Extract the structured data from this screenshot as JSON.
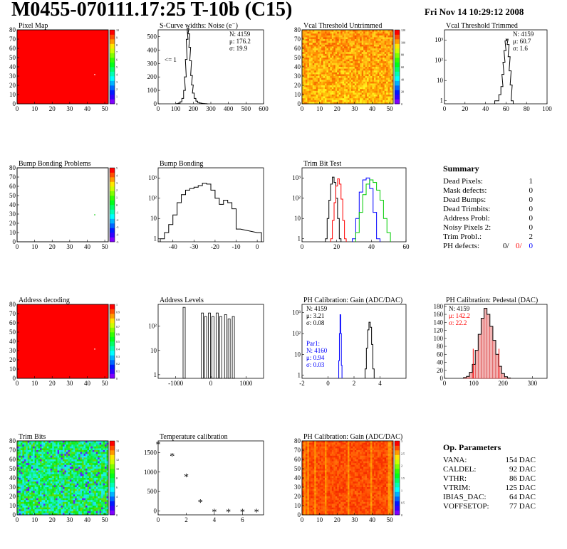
{
  "header": {
    "title": "M0455-070111.17:25 T-10b (C15)",
    "date": "Fri Nov 14 10:29:12 2008"
  },
  "panels": [
    {
      "id": "pixel_map",
      "title": "Pixel Map",
      "type": "heatmap",
      "xticks": [
        "0",
        "10",
        "20",
        "30",
        "40",
        "50"
      ],
      "yticks": [
        "0",
        "10",
        "20",
        "30",
        "40",
        "50",
        "60",
        "70",
        "80"
      ],
      "palette": "solid-red",
      "palette_labels": [
        "0",
        "1",
        "2",
        "3",
        "4",
        "5",
        "6",
        "7",
        "8",
        "9",
        "10"
      ]
    },
    {
      "id": "scurve",
      "title": "S-Curve widths: Noise (e⁻)",
      "type": "histogram",
      "xticks": [
        "0",
        "100",
        "200",
        "300",
        "400",
        "500",
        "600"
      ],
      "yticks": [
        "0",
        "100",
        "200",
        "300",
        "400",
        "500"
      ],
      "stats": [
        {
          "t": "N: 4159",
          "c": "#000"
        },
        {
          "t": "μ: 176.2",
          "c": "#000"
        },
        {
          "t": "σ: 19.9",
          "c": "#000"
        }
      ],
      "annotation": "<= 1"
    },
    {
      "id": "vcal_untrimmed",
      "title": "Vcal Threshold Untrimmed",
      "type": "heatmap",
      "xticks": [
        "0",
        "10",
        "20",
        "30",
        "40",
        "50"
      ],
      "yticks": [
        "0",
        "10",
        "20",
        "30",
        "40",
        "50",
        "60",
        "70",
        "80"
      ],
      "palette": "untrimmed",
      "palette_labels": [
        "0",
        "20",
        "40",
        "60",
        "80",
        "100",
        "120"
      ]
    },
    {
      "id": "vcal_trimmed",
      "title": "Vcal Threshold Trimmed",
      "type": "histogram",
      "xticks": [
        "0",
        "20",
        "40",
        "60",
        "80",
        "100"
      ],
      "yticks": [
        "1",
        "10",
        "10²",
        "10³"
      ],
      "stats": [
        {
          "t": "N: 4159",
          "c": "#000"
        },
        {
          "t": "μ: 60.7",
          "c": "#000"
        },
        {
          "t": "σ:  1.6",
          "c": "#000"
        }
      ]
    },
    {
      "id": "bump_problems",
      "title": "Bump Bonding Problems",
      "type": "heatmap",
      "xticks": [
        "0",
        "10",
        "20",
        "30",
        "40",
        "50"
      ],
      "yticks": [
        "0",
        "10",
        "20",
        "30",
        "40",
        "50",
        "60",
        "70",
        "80"
      ],
      "palette": "empty",
      "palette_labels": [
        "-5",
        "-4",
        "-3",
        "-2",
        "-1",
        "0",
        "1",
        "2",
        "3",
        "4",
        "5"
      ]
    },
    {
      "id": "bump_bonding",
      "title": "Bump Bonding",
      "type": "histogram",
      "xticks": [
        "-40",
        "-30",
        "-20",
        "-10",
        "0"
      ],
      "yticks": [
        "1",
        "10",
        "10²",
        "10³"
      ]
    },
    {
      "id": "trim_bit",
      "title": "Trim Bit Test",
      "type": "histogram",
      "xticks": [
        "0",
        "20",
        "40",
        "60"
      ],
      "yticks": [
        "1",
        "10",
        "10²",
        "10³"
      ]
    },
    {
      "id": "address_decoding",
      "title": "Address decoding",
      "type": "heatmap",
      "xticks": [
        "0",
        "10",
        "20",
        "30",
        "40",
        "50"
      ],
      "yticks": [
        "0",
        "10",
        "20",
        "30",
        "40",
        "50",
        "60",
        "70",
        "80"
      ],
      "palette": "solid-red",
      "palette_labels": [
        "0",
        "0.1",
        "0.2",
        "0.3",
        "0.4",
        "0.5",
        "0.6",
        "0.7",
        "0.8",
        "0.9",
        "1"
      ]
    },
    {
      "id": "address_levels",
      "title": "Address Levels",
      "type": "histogram",
      "xticks": [
        "-1000",
        "0",
        "1000"
      ],
      "yticks": [
        "1",
        "10",
        "10²"
      ]
    },
    {
      "id": "ph_gain_hist",
      "title": "PH Calibration: Gain (ADC/DAC)",
      "type": "histogram",
      "xticks": [
        "-2",
        "0",
        "2",
        "4"
      ],
      "yticks": [
        "1",
        "10",
        "10²",
        "10³"
      ],
      "stats": [
        {
          "t": "N: 4159",
          "c": "#000"
        },
        {
          "t": "μ: 3.21",
          "c": "#000"
        },
        {
          "t": "σ: 0.08",
          "c": "#000"
        }
      ],
      "stats2": [
        {
          "t": "Par1:",
          "c": "#0000ff"
        },
        {
          "t": "N: 4160",
          "c": "#0000ff"
        },
        {
          "t": "μ: 0.94",
          "c": "#0000ff"
        },
        {
          "t": "σ: 0.03",
          "c": "#0000ff"
        }
      ]
    },
    {
      "id": "ph_pedestal",
      "title": "PH Calibration: Pedestal (DAC)",
      "type": "histogram",
      "xticks": [
        "0",
        "100",
        "200",
        "300"
      ],
      "yticks": [
        "0",
        "20",
        "40",
        "60",
        "80",
        "100",
        "120",
        "140",
        "160",
        "180"
      ],
      "stats": [
        {
          "t": "N: 4159",
          "c": "#000"
        },
        {
          "t": "μ: 142.2",
          "c": "#ff0000"
        },
        {
          "t": "σ: 22.2",
          "c": "#ff0000"
        }
      ]
    },
    {
      "id": "trim_bits",
      "title": "Trim Bits",
      "type": "heatmap",
      "xticks": [
        "0",
        "10",
        "20",
        "30",
        "40",
        "50"
      ],
      "yticks": [
        "0",
        "10",
        "20",
        "30",
        "40",
        "50",
        "60",
        "70",
        "80"
      ],
      "palette": "trimbits",
      "palette_labels": [
        "0",
        "2",
        "4",
        "6",
        "8",
        "10",
        "12",
        "14",
        "16"
      ]
    },
    {
      "id": "temp_cal",
      "title": "Temperature calibration",
      "type": "scatter",
      "xticks": [
        "0",
        "2",
        "4",
        "6"
      ],
      "yticks": [
        "0",
        "500",
        "1000",
        "1500"
      ]
    },
    {
      "id": "ph_gain_map",
      "title": "PH Calibration: Gain (ADC/DAC)",
      "type": "heatmap",
      "xticks": [
        "0",
        "10",
        "20",
        "30",
        "40",
        "50"
      ],
      "yticks": [
        "0",
        "10",
        "20",
        "30",
        "40",
        "50",
        "60",
        "70",
        "80"
      ],
      "palette": "gainmap",
      "palette_labels": [
        "0",
        "0.5",
        "1",
        "1.5",
        "2",
        "2.5",
        "3"
      ]
    }
  ],
  "summary": {
    "title": "Summary",
    "rows": [
      {
        "label": "Dead Pixels:",
        "value": "1"
      },
      {
        "label": "Mask defects:",
        "value": "0"
      },
      {
        "label": "Dead Bumps:",
        "value": "0"
      },
      {
        "label": "Dead Trimbits:",
        "value": "0"
      },
      {
        "label": "Address Probl:",
        "value": "0"
      },
      {
        "label": "Noisy Pixels 2:",
        "value": "0"
      },
      {
        "label": "Trim Probl.:",
        "value": "2"
      }
    ],
    "ph_defects": {
      "label": "PH defects:",
      "v1": "0/",
      "v2": "0/",
      "v3": "0"
    }
  },
  "op_params": {
    "title": "Op. Parameters",
    "rows": [
      {
        "label": "VANA:",
        "value": "154 DAC"
      },
      {
        "label": "CALDEL:",
        "value": "92 DAC"
      },
      {
        "label": "VTHR:",
        "value": "86 DAC"
      },
      {
        "label": "VTRIM:",
        "value": "125 DAC"
      },
      {
        "label": "IBIAS_DAC:",
        "value": "64 DAC"
      },
      {
        "label": "VOFFSETOP:",
        "value": "77 DAC"
      }
    ]
  },
  "chart_data": [
    {
      "type": "heatmap",
      "panel": "pixel_map",
      "title": "Pixel Map",
      "x_range": [
        0,
        52
      ],
      "y_range": [
        0,
        80
      ],
      "description_value": "all pixels = 10, one dead pixel near (52,39)",
      "z_range": [
        0,
        10
      ]
    },
    {
      "type": "bar",
      "panel": "scurve",
      "title": "S-Curve widths: Noise (e⁻)",
      "xlim": [
        0,
        600
      ],
      "ylim": [
        0,
        550
      ],
      "x": [
        110,
        120,
        130,
        140,
        150,
        155,
        160,
        165,
        170,
        175,
        180,
        185,
        190,
        195,
        200,
        210,
        220,
        230,
        240,
        250,
        260,
        270,
        280
      ],
      "values": [
        2,
        5,
        15,
        40,
        100,
        200,
        330,
        480,
        560,
        520,
        420,
        320,
        210,
        140,
        80,
        40,
        20,
        10,
        6,
        3,
        2,
        1,
        0
      ]
    },
    {
      "type": "heatmap",
      "panel": "vcal_untrimmed",
      "title": "Vcal Threshold Untrimmed",
      "x_range": [
        0,
        52
      ],
      "y_range": [
        0,
        80
      ],
      "z_range": [
        0,
        130
      ]
    },
    {
      "type": "bar",
      "panel": "vcal_trimmed",
      "title": "Vcal Threshold Trimmed",
      "log_y": true,
      "xlim": [
        0,
        100
      ],
      "x": [
        50,
        52,
        54,
        56,
        57,
        58,
        59,
        60,
        61,
        62,
        63,
        64,
        65,
        66
      ],
      "values": [
        1,
        1,
        2,
        5,
        20,
        80,
        300,
        900,
        1100,
        600,
        150,
        30,
        6,
        1
      ]
    },
    {
      "type": "heatmap",
      "panel": "bump_problems",
      "title": "Bump Bonding Problems",
      "x_range": [
        0,
        52
      ],
      "y_range": [
        0,
        80
      ],
      "z_range": [
        -5,
        5
      ]
    },
    {
      "type": "bar",
      "panel": "bump_bonding",
      "title": "Bump Bonding",
      "log_y": true,
      "xlim": [
        -47,
        3
      ],
      "x": [
        -45,
        -43,
        -41,
        -39,
        -37,
        -35,
        -33,
        -31,
        -29,
        -27,
        -25,
        -23,
        -21,
        -19,
        -17,
        -15,
        -13,
        -11,
        -9,
        1
      ],
      "values": [
        1,
        2,
        5,
        15,
        60,
        150,
        250,
        300,
        350,
        420,
        550,
        500,
        250,
        100,
        50,
        80,
        60,
        30,
        3,
        2
      ]
    },
    {
      "type": "bar",
      "panel": "trim_bit",
      "title": "Trim Bit Test",
      "log_y": true,
      "xlim": [
        0,
        60
      ],
      "series": [
        {
          "name": "black",
          "x": [
            14,
            15,
            16,
            17,
            18,
            19,
            20,
            21,
            22
          ],
          "values": [
            1,
            10,
            80,
            500,
            1100,
            600,
            100,
            10,
            1
          ]
        },
        {
          "name": "red",
          "x": [
            17,
            18,
            19,
            20,
            21,
            22,
            23,
            24,
            25
          ],
          "values": [
            1,
            8,
            60,
            400,
            900,
            500,
            90,
            8,
            1
          ]
        },
        {
          "name": "blue",
          "x": [
            30,
            32,
            34,
            36,
            38,
            40,
            42,
            44
          ],
          "values": [
            1,
            10,
            200,
            800,
            1000,
            300,
            20,
            1
          ]
        },
        {
          "name": "green",
          "x": [
            32,
            34,
            36,
            38,
            40,
            42,
            44,
            46,
            48,
            50
          ],
          "values": [
            2,
            20,
            150,
            500,
            800,
            600,
            250,
            80,
            10,
            2
          ]
        }
      ]
    },
    {
      "type": "heatmap",
      "panel": "address_decoding",
      "title": "Address decoding",
      "x_range": [
        0,
        52
      ],
      "y_range": [
        0,
        80
      ],
      "z_range": [
        0,
        1
      ]
    },
    {
      "type": "bar",
      "panel": "address_levels",
      "title": "Address Levels",
      "log_y": true,
      "xlim": [
        -1500,
        1500
      ],
      "x": [
        -760,
        -240,
        -150,
        -40,
        60,
        180,
        280,
        420,
        520,
        640
      ],
      "values": [
        600,
        350,
        250,
        350,
        250,
        350,
        250,
        300,
        200,
        250
      ]
    },
    {
      "type": "bar",
      "panel": "ph_gain_hist",
      "title": "PH Calibration: Gain (ADC/DAC)",
      "log_y": true,
      "xlim": [
        -2,
        6
      ],
      "series": [
        {
          "name": "Gain",
          "x": [
            2.9,
            3.0,
            3.1,
            3.2,
            3.3,
            3.4,
            3.5
          ],
          "values": [
            2,
            20,
            150,
            350,
            200,
            30,
            2
          ]
        },
        {
          "name": "Par1",
          "x": [
            0.85,
            0.9,
            0.95,
            1.0,
            1.05
          ],
          "values": [
            5,
            100,
            800,
            100,
            3
          ]
        }
      ]
    },
    {
      "type": "bar",
      "panel": "ph_pedestal",
      "title": "PH Calibration: Pedestal (DAC)",
      "xlim": [
        0,
        350
      ],
      "ylim": [
        0,
        185
      ],
      "x": [
        70,
        80,
        90,
        100,
        110,
        120,
        130,
        140,
        150,
        160,
        170,
        180,
        190,
        200,
        210,
        220
      ],
      "values": [
        2,
        5,
        15,
        35,
        70,
        110,
        150,
        175,
        160,
        130,
        95,
        60,
        30,
        12,
        4,
        1
      ],
      "cuts": [
        98,
        186
      ]
    },
    {
      "type": "heatmap",
      "panel": "trim_bits",
      "title": "Trim Bits",
      "x_range": [
        0,
        52
      ],
      "y_range": [
        0,
        80
      ],
      "z_range": [
        0,
        16
      ]
    },
    {
      "type": "scatter",
      "panel": "temp_cal",
      "title": "Temperature calibration",
      "xlim": [
        0,
        7.5
      ],
      "ylim": [
        -100,
        1800
      ],
      "x": [
        0,
        1,
        2,
        3,
        4,
        5,
        6,
        7
      ],
      "values": [
        1720,
        1420,
        890,
        230,
        -20,
        -20,
        -20,
        -20
      ]
    },
    {
      "type": "heatmap",
      "panel": "ph_gain_map",
      "title": "PH Calibration: Gain (ADC/DAC)",
      "x_range": [
        0,
        52
      ],
      "y_range": [
        0,
        80
      ],
      "z_range": [
        0,
        3
      ]
    }
  ],
  "colors": {
    "red": "#ff0000",
    "blue": "#0000ff",
    "green": "#00cc00",
    "black": "#000000"
  }
}
